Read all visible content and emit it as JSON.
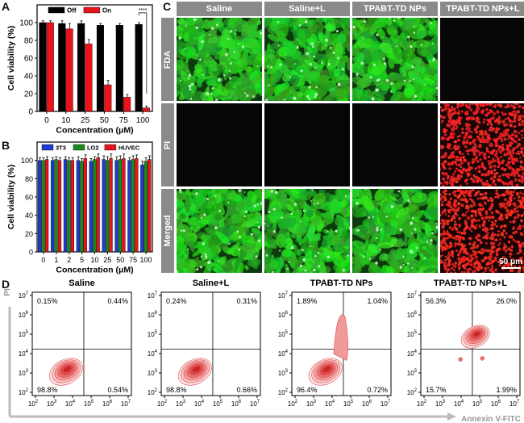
{
  "panels": {
    "A": "A",
    "B": "B",
    "C": "C",
    "D": "D"
  },
  "chart_data": [
    {
      "panel": "A",
      "type": "bar",
      "xlabel": "Concentration (μM)",
      "ylabel": "Cell viability (%)",
      "categories": [
        "0",
        "10",
        "25",
        "50",
        "75",
        "100"
      ],
      "ylim": [
        0,
        120
      ],
      "yticks": [
        "0",
        "20",
        "40",
        "60",
        "80",
        "100"
      ],
      "series": [
        {
          "name": "Off",
          "color": "#000000",
          "values": [
            100,
            99,
            99,
            97,
            97,
            98
          ],
          "err": [
            2,
            3,
            3,
            2,
            2,
            2
          ]
        },
        {
          "name": "On",
          "color": "#e8141a",
          "values": [
            100,
            93,
            76,
            30,
            16,
            4
          ],
          "err": [
            2,
            6,
            5,
            5,
            3,
            2
          ]
        }
      ],
      "annotation": "****"
    },
    {
      "panel": "B",
      "type": "bar",
      "xlabel": "Concentration (μM)",
      "ylabel": "Cell viability (%)",
      "categories": [
        "0",
        "1",
        "2",
        "5",
        "10",
        "25",
        "50",
        "75",
        "100"
      ],
      "ylim": [
        0,
        120
      ],
      "yticks": [
        "0",
        "20",
        "40",
        "60",
        "80",
        "100"
      ],
      "series": [
        {
          "name": "3T3",
          "color": "#1f3bd6",
          "values": [
            100,
            100,
            101,
            100,
            99,
            101,
            100,
            100,
            95
          ],
          "err": [
            3,
            3,
            3,
            4,
            3,
            4,
            4,
            3,
            4
          ]
        },
        {
          "name": "LO2",
          "color": "#1a8a1a",
          "values": [
            100,
            101,
            100,
            99,
            101,
            100,
            101,
            101,
            99
          ],
          "err": [
            3,
            3,
            3,
            3,
            3,
            4,
            4,
            4,
            4
          ]
        },
        {
          "name": "HUVEC",
          "color": "#e8141a",
          "values": [
            101,
            100,
            100,
            102,
            103,
            102,
            102,
            102,
            101
          ],
          "err": [
            3,
            3,
            3,
            4,
            4,
            5,
            5,
            4,
            4
          ]
        }
      ]
    }
  ],
  "microscopy": {
    "columns": [
      "Saline",
      "Saline+L",
      "TPABT-TD NPs",
      "TPABT-TD NPs+L"
    ],
    "rows": [
      "FDA",
      "PI",
      "Merged"
    ],
    "scale_bar": "50 μm"
  },
  "flow": {
    "ylabel": "PI",
    "xlabel": "Annexin V-FITC",
    "axis_ticks": [
      "10",
      "2",
      "3",
      "4",
      "5",
      "6",
      "7"
    ],
    "plots": [
      {
        "title": "Saline",
        "q1": "0.15%",
        "q2": "0.44%",
        "q3": "98.8%",
        "q4": "0.54%"
      },
      {
        "title": "Saline+L",
        "q1": "0.24%",
        "q2": "0.31%",
        "q3": "98.8%",
        "q4": "0.66%"
      },
      {
        "title": "TPABT-TD NPs",
        "q1": "1.89%",
        "q2": "1.04%",
        "q3": "96.4%",
        "q4": "0.72%"
      },
      {
        "title": "TPABT-TD NPs+L",
        "q1": "56.3%",
        "q2": "26.0%",
        "q3": "15.7%",
        "q4": "1.99%"
      }
    ]
  },
  "colors": {
    "gfp": "#1fd32a",
    "pi": "#e01818",
    "header_gray": "#8a8a8a",
    "contour": "#e05050"
  }
}
